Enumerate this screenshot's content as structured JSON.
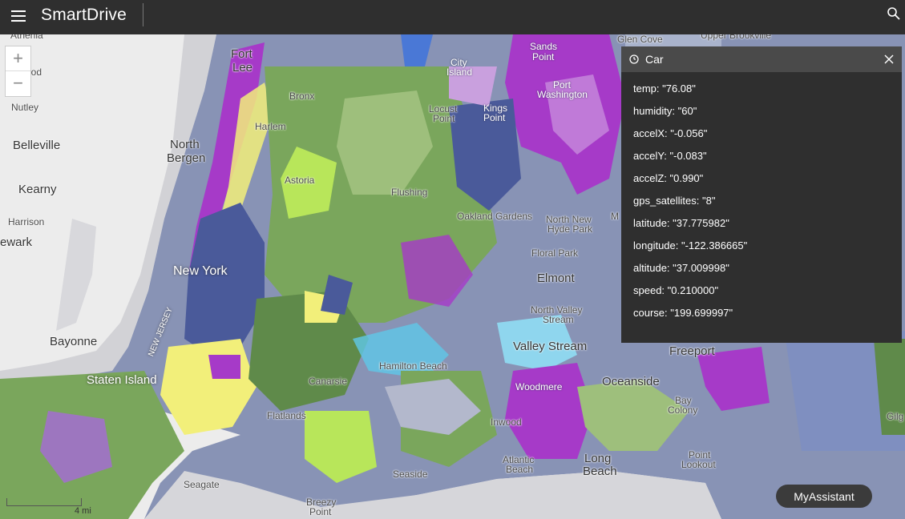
{
  "app": {
    "title": "SmartDrive",
    "menu_icon": "hamburger-menu-icon",
    "search_icon": "search-icon"
  },
  "map": {
    "labels": [
      {
        "text": "Athenia"
      },
      {
        "text": "ood"
      },
      {
        "text": "Nutley"
      },
      {
        "text": "Belleville"
      },
      {
        "text": "Kearny"
      },
      {
        "text": "Harrison"
      },
      {
        "text": "ewark"
      },
      {
        "text": "Bayonne"
      },
      {
        "text": "Fort"
      },
      {
        "text": "Lee"
      },
      {
        "text": "North"
      },
      {
        "text": "Bergen"
      },
      {
        "text": "NEW JERSEY"
      },
      {
        "text": "New York"
      },
      {
        "text": "Staten Island"
      },
      {
        "text": "Seagate"
      },
      {
        "text": "Breezy"
      },
      {
        "text": "Point"
      },
      {
        "text": "Bronx"
      },
      {
        "text": "Harlem"
      },
      {
        "text": "Astoria"
      },
      {
        "text": "Flushing"
      },
      {
        "text": "City"
      },
      {
        "text": "Island"
      },
      {
        "text": "Locust"
      },
      {
        "text": "Point"
      },
      {
        "text": "Kings"
      },
      {
        "text": "Point"
      },
      {
        "text": "Sands"
      },
      {
        "text": "Point"
      },
      {
        "text": "Port"
      },
      {
        "text": "Washington"
      },
      {
        "text": "Glen Cove"
      },
      {
        "text": "Upper Brookville"
      },
      {
        "text": "Oakland Gardens"
      },
      {
        "text": "North New"
      },
      {
        "text": "Hyde Park"
      },
      {
        "text": "M"
      },
      {
        "text": "Floral Park"
      },
      {
        "text": "Elmont"
      },
      {
        "text": "North Valley"
      },
      {
        "text": "Stream"
      },
      {
        "text": "Valley Stream"
      },
      {
        "text": "Freeport"
      },
      {
        "text": "Canarsie"
      },
      {
        "text": "Hamilton Beach"
      },
      {
        "text": "Flatlands"
      },
      {
        "text": "Woodmere"
      },
      {
        "text": "Inwood"
      },
      {
        "text": "Oceanside"
      },
      {
        "text": "Bay"
      },
      {
        "text": "Colony"
      },
      {
        "text": "Atlantic"
      },
      {
        "text": "Beach"
      },
      {
        "text": "Long"
      },
      {
        "text": "Beach"
      },
      {
        "text": "Point"
      },
      {
        "text": "Lookout"
      },
      {
        "text": "Seaside"
      },
      {
        "text": "Gilg"
      }
    ],
    "zoom_in_label": "+",
    "zoom_out_label": "−",
    "scale_label": "4 mi"
  },
  "popup": {
    "title": "Car",
    "icon": "clock-icon",
    "close_icon": "close-icon",
    "rows": [
      "temp: \"76.08\"",
      "humidity: \"60\"",
      "accelX: \"-0.056\"",
      "accelY: \"-0.083\"",
      "accelZ: \"0.990\"",
      "gps_satellites: \"8\"",
      "latitude: \"37.775982\"",
      "longitude: \"-122.386665\"",
      "altitude: \"37.009998\"",
      "speed: \"0.210000\"",
      "course: \"199.699997\""
    ]
  },
  "assistant": {
    "label": "MyAssistant"
  },
  "colors": {
    "topbar": "#2f2f2f",
    "popup_bg": "#2f2f2f",
    "popup_header": "#4a4a4a",
    "land": "#ececec",
    "water": "#d6d6da",
    "purple": "#a63ac8",
    "navy": "#4a5a9a",
    "green": "#7aa65c",
    "lime": "#b8e65a",
    "yellow": "#f2ef7a",
    "cyan": "#5fc8e8",
    "slate": "#8a93b8"
  }
}
